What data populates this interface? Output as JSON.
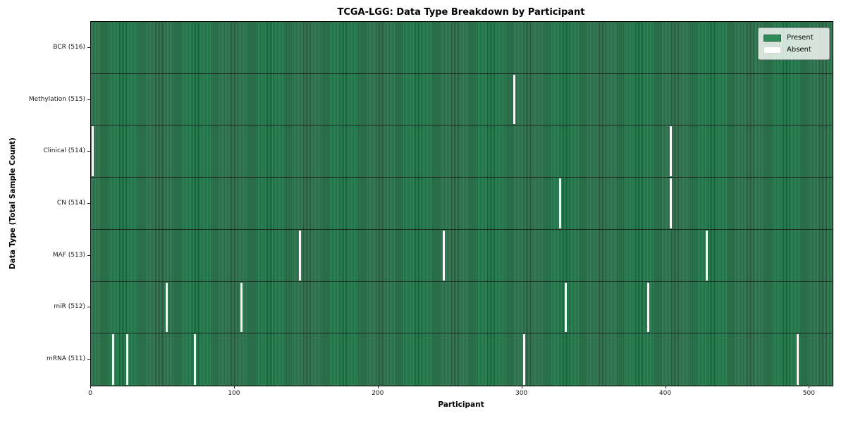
{
  "figure": {
    "title": "TCGA-LGG: Data Type Breakdown by Participant",
    "xlabel": "Participant",
    "ylabel": "Data Type (Total Sample Count)"
  },
  "legend": {
    "items": [
      {
        "label": "Present",
        "color": "#2e8b57"
      },
      {
        "label": "Absent",
        "color": "#ffffff"
      }
    ],
    "position": "upper right"
  },
  "chart_data": {
    "type": "heatmap",
    "title": "TCGA-LGG: Data Type Breakdown by Participant",
    "xlabel": "Participant",
    "ylabel": "Data Type (Total Sample Count)",
    "n_participants": 516,
    "xlim": [
      0,
      516
    ],
    "x_ticks": [
      0,
      100,
      200,
      300,
      400,
      500
    ],
    "grid": false,
    "legend_entries": [
      "Present",
      "Absent"
    ],
    "legend_position": "upper right",
    "colors": {
      "present_fill": "#2f8155",
      "present_cell_edge": "#235c3c",
      "absent_fill": "#f7f7f7",
      "row_separator": "#1d2b22",
      "legend_present_swatch": "#2e8b57"
    },
    "rows": [
      {
        "data_type": "BCR",
        "label": "BCR (516)",
        "present_count": 516,
        "absent_count": 0,
        "absent_participants": []
      },
      {
        "data_type": "Methylation",
        "label": "Methylation (515)",
        "present_count": 515,
        "absent_count": 1,
        "absent_participants": [
          294
        ]
      },
      {
        "data_type": "Clinical",
        "label": "Clinical (514)",
        "present_count": 514,
        "absent_count": 2,
        "absent_participants": [
          0,
          403
        ]
      },
      {
        "data_type": "CN",
        "label": "CN (514)",
        "present_count": 514,
        "absent_count": 2,
        "absent_participants": [
          326,
          403
        ]
      },
      {
        "data_type": "MAF",
        "label": "MAF (513)",
        "present_count": 513,
        "absent_count": 3,
        "absent_participants": [
          145,
          245,
          428
        ]
      },
      {
        "data_type": "miR",
        "label": "miR (512)",
        "present_count": 512,
        "absent_count": 4,
        "absent_participants": [
          52,
          104,
          330,
          387
        ]
      },
      {
        "data_type": "mRNA",
        "label": "mRNA (511)",
        "present_count": 511,
        "absent_count": 5,
        "absent_participants": [
          15,
          25,
          72,
          301,
          491
        ]
      }
    ]
  }
}
